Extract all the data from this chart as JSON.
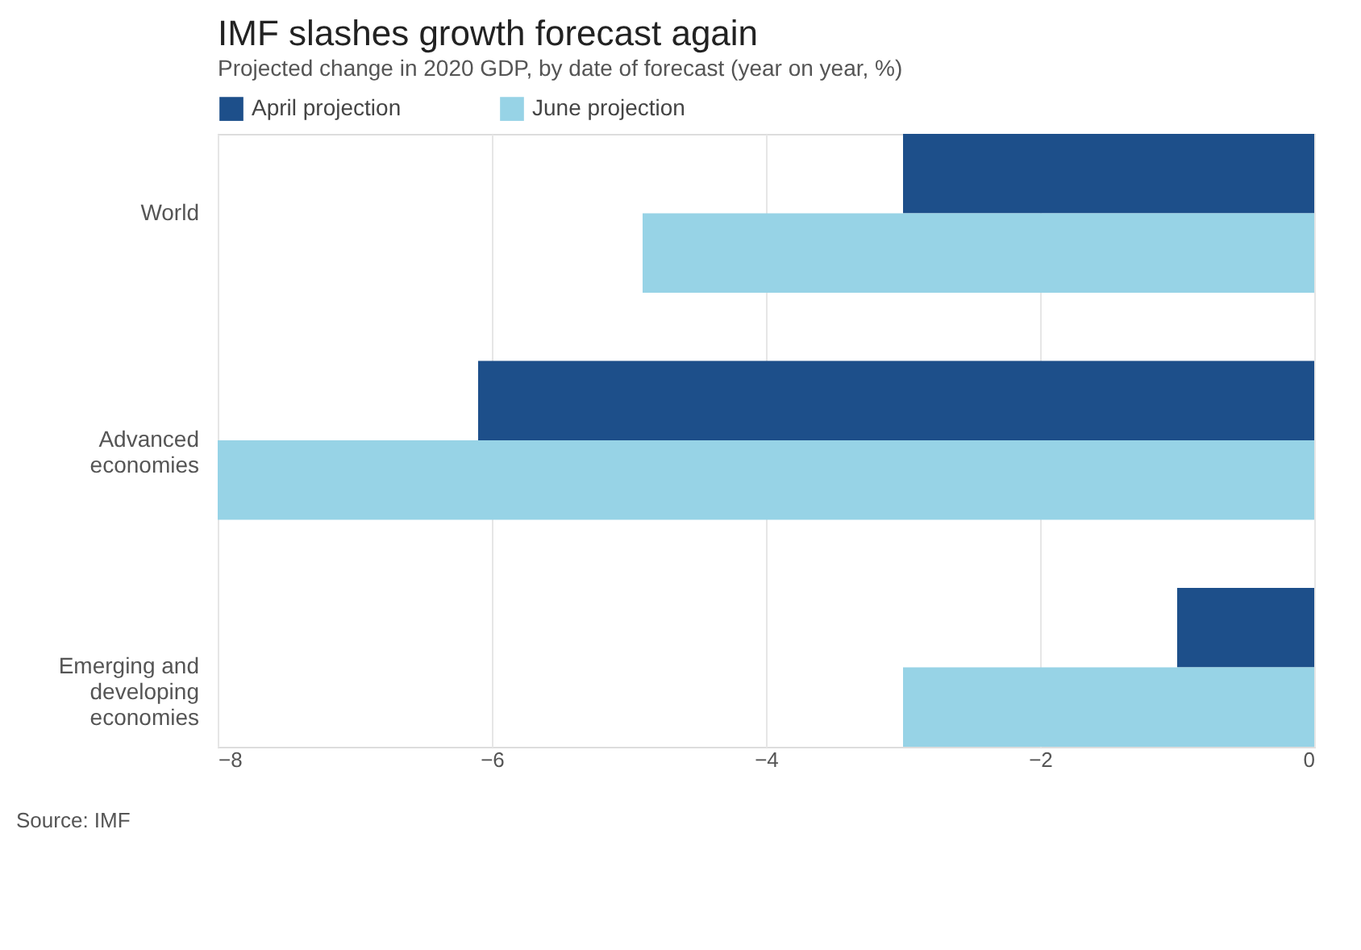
{
  "chart_data": {
    "type": "bar",
    "orientation": "horizontal",
    "title": "IMF slashes growth forecast again",
    "subtitle": "Projected change in 2020 GDP, by date of forecast (year on year, %)",
    "categories": [
      "World",
      "Advanced economies",
      "Emerging and developing economies"
    ],
    "series": [
      {
        "name": "April projection",
        "color": "#1d4f8a",
        "values": [
          -3.0,
          -6.1,
          -1.0
        ]
      },
      {
        "name": "June projection",
        "color": "#97d3e6",
        "values": [
          -4.9,
          -8.0,
          -3.0
        ]
      }
    ],
    "xlim": [
      -8,
      0
    ],
    "xticks": [
      -8,
      -6,
      -4,
      -2,
      0
    ],
    "grid": "x",
    "legend": "top left",
    "annotations": [
      "Source: IMF"
    ]
  }
}
